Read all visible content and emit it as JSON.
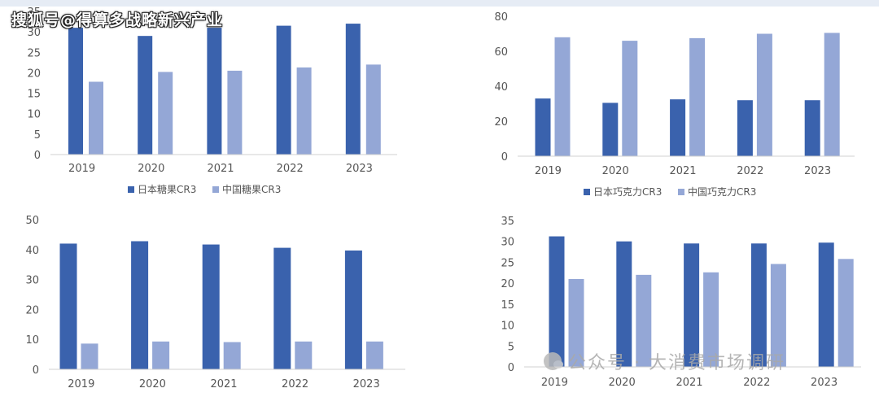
{
  "watermarks": {
    "top": "搜狐号@得算多战略新兴产业",
    "bottom": "公众号 · 大消费市场调研"
  },
  "colors": {
    "japan": "#3a62ad",
    "china": "#94a7d6"
  },
  "chart_data": [
    {
      "type": "bar",
      "categories": [
        "2019",
        "2020",
        "2021",
        "2022",
        "2023"
      ],
      "ylim": [
        0,
        35
      ],
      "yticks": [
        0,
        5,
        10,
        15,
        20,
        25,
        30,
        35
      ],
      "legend_position": "bottom",
      "series": [
        {
          "name": "日本糖果CR3",
          "values": [
            31.0,
            29.0,
            31.0,
            31.5,
            32.0
          ]
        },
        {
          "name": "中国糖果CR3",
          "values": [
            17.8,
            20.2,
            20.5,
            21.3,
            22.0
          ]
        }
      ]
    },
    {
      "type": "bar",
      "categories": [
        "2019",
        "2020",
        "2021",
        "2022",
        "2023"
      ],
      "ylim": [
        0,
        80
      ],
      "yticks": [
        0,
        20,
        40,
        60,
        80
      ],
      "legend_position": "bottom",
      "series": [
        {
          "name": "日本巧克力CR3",
          "values": [
            33.0,
            30.5,
            32.5,
            32.0,
            32.0
          ]
        },
        {
          "name": "中国巧克力CR3",
          "values": [
            68.0,
            66.0,
            67.5,
            70.0,
            70.5
          ]
        }
      ]
    },
    {
      "type": "bar",
      "categories": [
        "2019",
        "2020",
        "2021",
        "2022",
        "2023"
      ],
      "ylim": [
        0,
        50
      ],
      "yticks": [
        0,
        10,
        20,
        30,
        40,
        50
      ],
      "series": [
        {
          "values": [
            42.0,
            42.8,
            41.7,
            40.6,
            39.7
          ]
        },
        {
          "values": [
            8.6,
            9.3,
            9.1,
            9.3,
            9.3
          ]
        }
      ]
    },
    {
      "type": "bar",
      "categories": [
        "2019",
        "2020",
        "2021",
        "2022",
        "2023"
      ],
      "ylim": [
        0,
        35
      ],
      "yticks": [
        0,
        5,
        10,
        15,
        20,
        25,
        30,
        35
      ],
      "series": [
        {
          "values": [
            31.2,
            30.0,
            29.5,
            29.5,
            29.7
          ]
        },
        {
          "values": [
            21.0,
            22.0,
            22.6,
            24.6,
            25.8
          ]
        }
      ]
    }
  ]
}
